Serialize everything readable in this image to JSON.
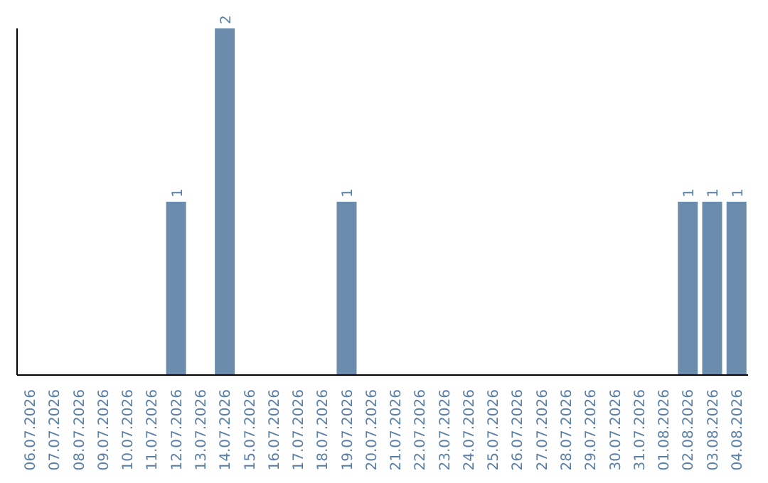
{
  "chart_data": {
    "type": "bar",
    "categories": [
      "06.07.2026",
      "07.07.2026",
      "08.07.2026",
      "09.07.2026",
      "10.07.2026",
      "11.07.2026",
      "12.07.2026",
      "13.07.2026",
      "14.07.2026",
      "15.07.2026",
      "16.07.2026",
      "17.07.2026",
      "18.07.2026",
      "19.07.2026",
      "20.07.2026",
      "21.07.2026",
      "22.07.2026",
      "23.07.2026",
      "24.07.2026",
      "25.07.2026",
      "26.07.2026",
      "27.07.2026",
      "28.07.2026",
      "29.07.2026",
      "30.07.2026",
      "31.07.2026",
      "01.08.2026",
      "02.08.2026",
      "03.08.2026",
      "04.08.2026"
    ],
    "values": [
      0,
      0,
      0,
      0,
      0,
      0,
      1,
      0,
      2,
      0,
      0,
      0,
      0,
      1,
      0,
      0,
      0,
      0,
      0,
      0,
      0,
      0,
      0,
      0,
      0,
      0,
      0,
      1,
      1,
      1
    ],
    "value_labels": [
      null,
      null,
      null,
      null,
      null,
      null,
      "1",
      null,
      "2",
      null,
      null,
      null,
      null,
      "1",
      null,
      null,
      null,
      null,
      null,
      null,
      null,
      null,
      null,
      null,
      null,
      null,
      null,
      "1",
      "1",
      "1"
    ],
    "color": "#6b8cad",
    "relative": false,
    "tick_labels": "x",
    "grid": false,
    "legend": false
  }
}
